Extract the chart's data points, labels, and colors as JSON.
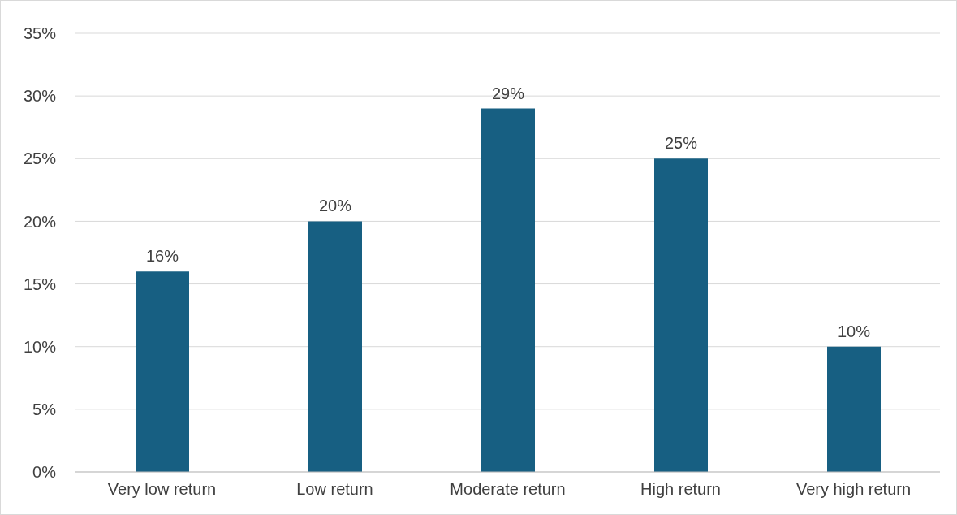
{
  "chart_data": {
    "type": "bar",
    "categories": [
      "Very low return",
      "Low return",
      "Moderate return",
      "High return",
      "Very high return"
    ],
    "values": [
      16,
      20,
      29,
      25,
      10
    ],
    "color": "#175f82",
    "value_labels": [
      "16%",
      "20%",
      "29%",
      "25%",
      "10%"
    ],
    "ylim": [
      0,
      35
    ],
    "yticks": [
      {
        "value": 0,
        "label": "0%"
      },
      {
        "value": 5,
        "label": "5%"
      },
      {
        "value": 10,
        "label": "10%"
      },
      {
        "value": 15,
        "label": "15%"
      },
      {
        "value": 20,
        "label": "20%"
      },
      {
        "value": 25,
        "label": "25%"
      },
      {
        "value": 30,
        "label": "30%"
      },
      {
        "value": 35,
        "label": "35%"
      }
    ],
    "grid": "y",
    "legend": false
  }
}
